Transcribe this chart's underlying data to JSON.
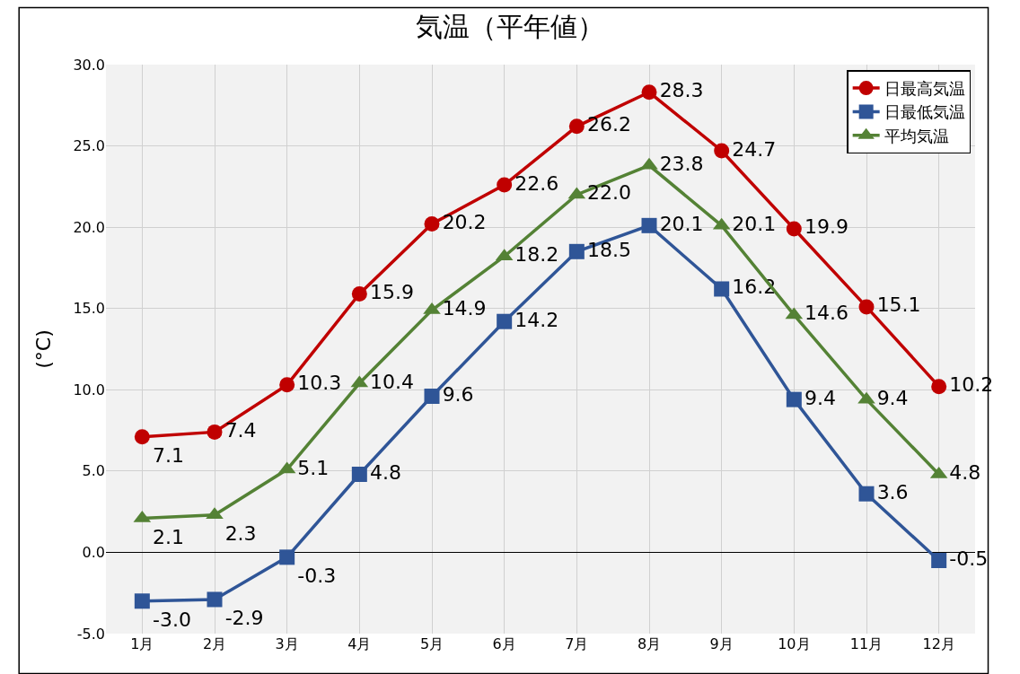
{
  "chart_data": {
    "type": "line",
    "title": "気温（平年値）",
    "ylabel": "(°C)",
    "categories": [
      "1月",
      "2月",
      "3月",
      "4月",
      "5月",
      "6月",
      "7月",
      "8月",
      "9月",
      "10月",
      "11月",
      "12月"
    ],
    "series": [
      {
        "name": "日最高気温",
        "color": "#c00000",
        "marker": "circle",
        "values": [
          7.1,
          7.4,
          10.3,
          15.9,
          20.2,
          22.6,
          26.2,
          28.3,
          24.7,
          19.9,
          15.1,
          10.2
        ],
        "value_labels": [
          "7.1",
          "7.4",
          "10.3",
          "15.9",
          "20.2",
          "22.6",
          "26.2",
          "28.3",
          "24.7",
          "19.9",
          "15.1",
          "10.2"
        ]
      },
      {
        "name": "日最低気温",
        "color": "#2f5597",
        "marker": "square",
        "values": [
          -3.0,
          -2.9,
          -0.3,
          4.8,
          9.6,
          14.2,
          18.5,
          20.1,
          16.2,
          9.4,
          3.6,
          -0.5
        ],
        "value_labels": [
          "-3.0",
          "-2.9",
          "-0.3",
          "4.8",
          "9.6",
          "14.2",
          "18.5",
          "20.1",
          "16.2",
          "9.4",
          "3.6",
          "-0.5"
        ]
      },
      {
        "name": "平均気温",
        "color": "#548235",
        "marker": "triangle",
        "values": [
          2.1,
          2.3,
          5.1,
          10.4,
          14.9,
          18.2,
          22.0,
          23.8,
          20.1,
          14.6,
          9.4,
          4.8
        ],
        "value_labels": [
          "2.1",
          "2.3",
          "5.1",
          "10.4",
          "14.9",
          "18.2",
          "22.0",
          "23.8",
          "20.1",
          "14.6",
          "9.4",
          "4.8"
        ]
      }
    ],
    "ylim": [
      -5,
      30
    ],
    "yticks": [
      {
        "value": -5,
        "label": "-5.0"
      },
      {
        "value": 0,
        "label": "0.0"
      },
      {
        "value": 5,
        "label": "5.0"
      },
      {
        "value": 10,
        "label": "10.0"
      },
      {
        "value": 15,
        "label": "15.0"
      },
      {
        "value": 20,
        "label": "20.0"
      },
      {
        "value": 25,
        "label": "25.0"
      },
      {
        "value": 30,
        "label": "30.0"
      }
    ],
    "grid": true,
    "legend": "top right",
    "line_style": "solid"
  }
}
